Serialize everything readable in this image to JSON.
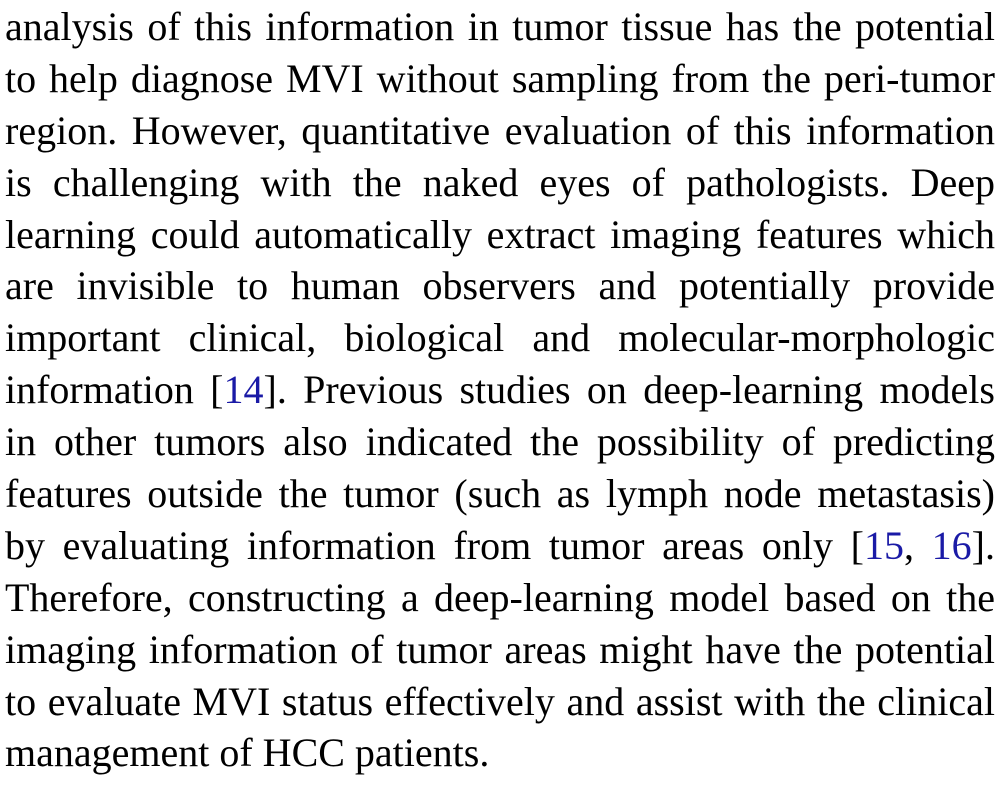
{
  "paragraph": {
    "lines": [
      [
        {
          "text": "analysis of this information in tumor tissue has the potential"
        }
      ],
      [
        {
          "text": "to help diagnose MVI without sampling from the peri-tumor"
        }
      ],
      [
        {
          "text": "region. However, quantitative evaluation of this information"
        }
      ],
      [
        {
          "text": "is challenging with the naked eyes of pathologists. Deep"
        }
      ],
      [
        {
          "text": "learning could automatically extract imaging features which"
        }
      ],
      [
        {
          "text": "are invisible to human observers and potentially provide"
        }
      ],
      [
        {
          "text": "important clinical, biological and molecular-morphologic"
        }
      ],
      [
        {
          "text": "information ["
        },
        {
          "text": "14",
          "cite": true
        },
        {
          "text": "]. Previous studies on deep-learning models"
        }
      ],
      [
        {
          "text": "in other tumors also indicated the possibility of predicting"
        }
      ],
      [
        {
          "text": "features outside the tumor (such as lymph node metastasis)"
        }
      ],
      [
        {
          "text": "by evaluating information from tumor areas only ["
        },
        {
          "text": "15",
          "cite": true
        },
        {
          "text": ", "
        },
        {
          "text": "16",
          "cite": true
        },
        {
          "text": "]."
        }
      ],
      [
        {
          "text": "Therefore, constructing a deep-learning model based on the"
        }
      ],
      [
        {
          "text": "imaging information of tumor areas might have the potential"
        }
      ],
      [
        {
          "text": "to evaluate MVI status effectively and assist with the clinical"
        }
      ],
      [
        {
          "text": "management of HCC patients."
        }
      ]
    ],
    "citation_color": "#1a1aa6"
  }
}
